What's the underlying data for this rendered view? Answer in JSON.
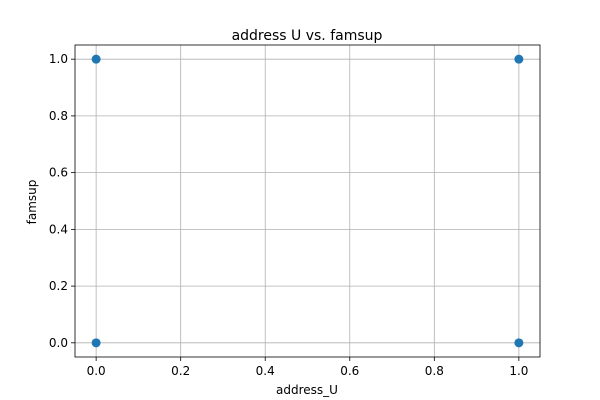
{
  "chart_data": {
    "type": "scatter",
    "title": "address U vs. famsup",
    "xlabel": "address_U",
    "ylabel": "famsup",
    "xlim": [
      -0.05,
      1.05
    ],
    "ylim": [
      -0.05,
      1.05
    ],
    "xticks": [
      0.0,
      0.2,
      0.4,
      0.6,
      0.8,
      1.0
    ],
    "xtick_labels": [
      "0.0",
      "0.2",
      "0.4",
      "0.6",
      "0.8",
      "1.0"
    ],
    "yticks": [
      0.0,
      0.2,
      0.4,
      0.6,
      0.8,
      1.0
    ],
    "ytick_labels": [
      "0.0",
      "0.2",
      "0.4",
      "0.6",
      "0.8",
      "1.0"
    ],
    "grid": true,
    "legend": false,
    "point_color": "#1f77b4",
    "points": [
      {
        "x": 0,
        "y": 0
      },
      {
        "x": 0,
        "y": 1
      },
      {
        "x": 1,
        "y": 0
      },
      {
        "x": 1,
        "y": 1
      }
    ]
  }
}
